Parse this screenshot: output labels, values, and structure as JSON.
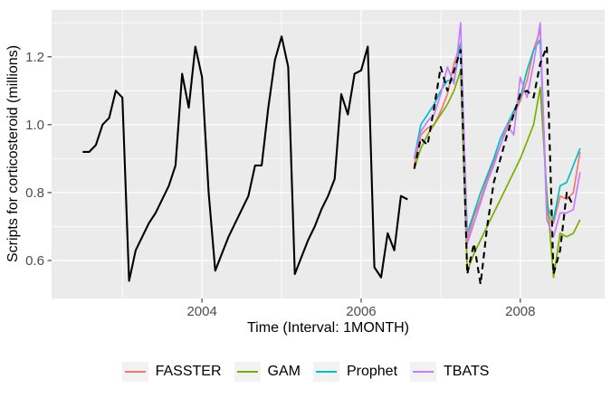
{
  "figure": {
    "panel_bg": "#EBEBEB",
    "grid_color": "#FFFFFF",
    "tick_label_color": "#4D4D4D",
    "tick_mark_color": "#333333",
    "legend_key_bg": "#F2F2F2"
  },
  "chart_data": {
    "type": "line",
    "title": "",
    "xlabel": "Time (Interval: 1MONTH)",
    "ylabel": "Scripts for corticosteroid (millions)",
    "xlim": [
      2002.11,
      2009.06
    ],
    "ylim": [
      0.488,
      1.338
    ],
    "x_ticks": [
      2004,
      2006,
      2008
    ],
    "x_tick_labels": [
      "2004",
      "2006",
      "2008"
    ],
    "x_minor": [
      2003,
      2005,
      2007
    ],
    "y_ticks": [
      0.6,
      0.8,
      1.0,
      1.2
    ],
    "y_tick_labels": [
      "0.6",
      "0.8",
      "1.0",
      "1.2"
    ],
    "y_minor": [
      0.7,
      0.9,
      1.1,
      1.3
    ],
    "grid": true,
    "legend_position": "bottom",
    "time_step_years": 0.0833333,
    "series": [
      {
        "name": "Observed",
        "color": "#000000",
        "dash": "solid",
        "width": 2.1,
        "in_legend": false,
        "t0": 2002.5,
        "values": [
          0.92,
          0.92,
          0.94,
          1.0,
          1.02,
          1.1,
          1.08,
          0.54,
          0.63,
          0.67,
          0.71,
          0.74,
          0.78,
          0.82,
          0.88,
          1.15,
          1.05,
          1.23,
          1.14,
          0.8,
          0.57,
          0.62,
          0.67,
          0.71,
          0.75,
          0.79,
          0.88,
          0.88,
          1.05,
          1.19,
          1.26,
          1.17,
          0.56,
          0.61,
          0.66,
          0.7,
          0.75,
          0.79,
          0.84,
          1.09,
          1.03,
          1.15,
          1.16,
          1.23,
          0.58,
          0.55,
          0.68,
          0.63,
          0.79,
          0.78
        ]
      },
      {
        "name": "FASSTER",
        "color": "#F8766D",
        "dash": "solid",
        "width": 1.7,
        "in_legend": true,
        "t0": 2006.667,
        "values": [
          0.88,
          0.97,
          0.99,
          1.0,
          1.04,
          1.09,
          1.18,
          1.24,
          0.66,
          0.73,
          0.78,
          0.84,
          0.89,
          0.94,
          0.99,
          1.03,
          1.07,
          1.13,
          1.22,
          1.28,
          0.74,
          0.71,
          0.79,
          0.78,
          0.8,
          0.92
        ]
      },
      {
        "name": "GAM",
        "color": "#7CAE00",
        "dash": "solid",
        "width": 1.7,
        "in_legend": true,
        "t0": 2006.667,
        "values": [
          0.87,
          0.93,
          0.97,
          1.0,
          1.03,
          1.06,
          1.1,
          1.16,
          0.57,
          0.62,
          0.66,
          0.7,
          0.74,
          0.78,
          0.82,
          0.86,
          0.9,
          0.95,
          1.0,
          1.11,
          0.8,
          0.55,
          0.68,
          0.67,
          0.68,
          0.72
        ]
      },
      {
        "name": "Prophet",
        "color": "#00BFC4",
        "dash": "solid",
        "width": 1.7,
        "in_legend": true,
        "t0": 2006.667,
        "values": [
          0.9,
          1.0,
          1.03,
          1.06,
          1.1,
          1.13,
          1.13,
          1.24,
          0.68,
          0.74,
          0.8,
          0.85,
          0.9,
          0.96,
          1.0,
          1.04,
          1.08,
          1.16,
          1.22,
          1.25,
          0.76,
          0.72,
          0.82,
          0.83,
          0.88,
          0.93
        ]
      },
      {
        "name": "TBATS",
        "color": "#C77CFF",
        "dash": "solid",
        "width": 1.7,
        "in_legend": true,
        "t0": 2006.667,
        "values": [
          0.9,
          0.98,
          1.01,
          1.03,
          1.09,
          1.17,
          1.12,
          1.3,
          0.65,
          0.71,
          0.77,
          0.83,
          0.88,
          0.94,
          1.0,
          0.97,
          1.14,
          1.08,
          1.18,
          1.3,
          0.72,
          0.67,
          0.74,
          0.74,
          0.75,
          0.86
        ]
      },
      {
        "name": "Actual",
        "color": "#000000",
        "dash": "dashed",
        "width": 2.1,
        "in_legend": false,
        "t0": 2006.667,
        "values": [
          0.87,
          0.96,
          0.94,
          1.05,
          1.17,
          1.1,
          1.16,
          1.22,
          0.56,
          0.65,
          0.53,
          0.7,
          0.83,
          0.9,
          0.97,
          1.03,
          1.09,
          1.1,
          1.08,
          1.18,
          1.23,
          0.56,
          0.63,
          0.8,
          0.76
        ]
      }
    ]
  }
}
